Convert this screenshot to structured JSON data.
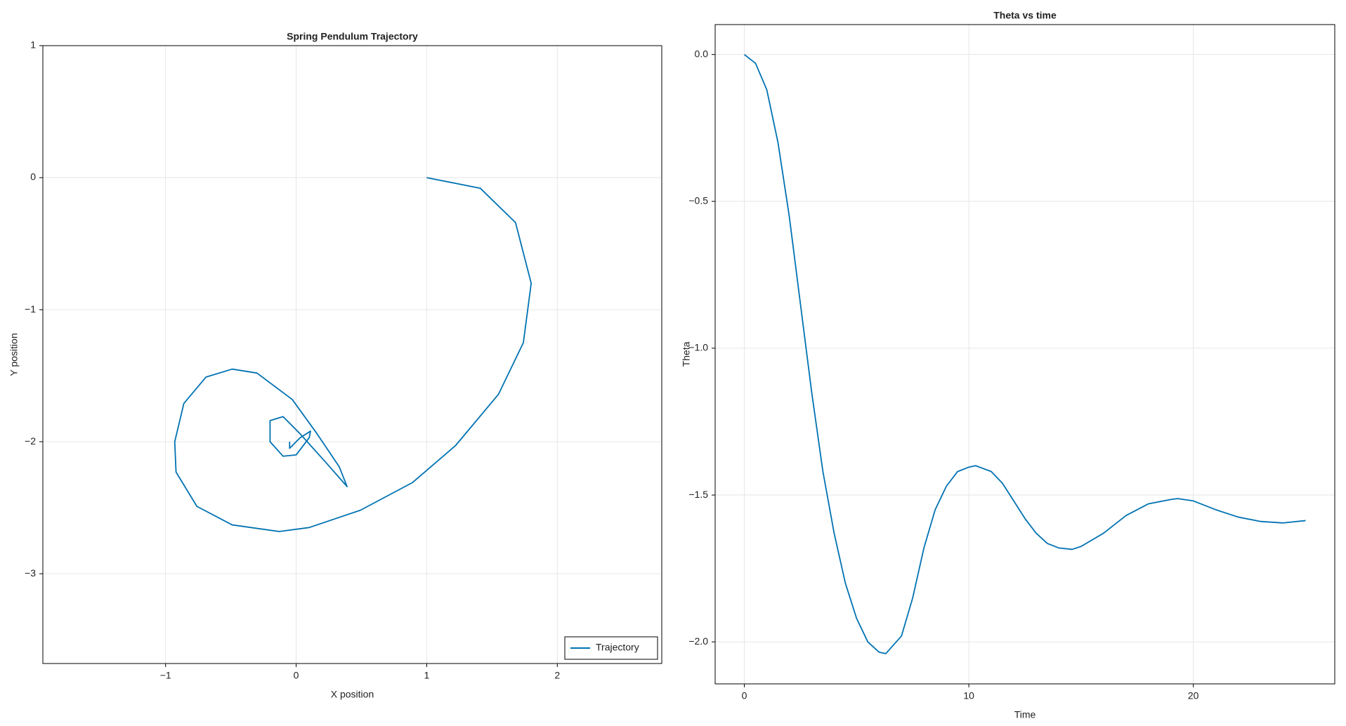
{
  "chart_data": [
    {
      "type": "line",
      "title": "Spring Pendulum Trajectory",
      "x_label": "X position",
      "y_label": "Y position",
      "xlim": [
        -1.94,
        2.8
      ],
      "ylim": [
        -3.68,
        1
      ],
      "xticks": [
        {
          "value": -1,
          "label": "−1"
        },
        0,
        1,
        2
      ],
      "yticks": [
        1,
        0,
        {
          "value": -1,
          "label": "−1"
        },
        {
          "value": -2,
          "label": "−2"
        },
        {
          "value": -3,
          "label": "−3"
        }
      ],
      "grid": true,
      "legend": "lower right",
      "series": [
        {
          "name": "Trajectory",
          "color": "#0072b2",
          "x": [
            1,
            1.41,
            1.68,
            1.8,
            1.74,
            1.55,
            1.22,
            0.89,
            0.49,
            0.1,
            -0.13,
            -0.49,
            -0.76,
            -0.92,
            -0.93,
            -0.86,
            -0.69,
            -0.49,
            -0.3,
            -0.03,
            0.16,
            0.33,
            0.39,
            0.23,
            0.03,
            -0.1,
            -0.2,
            -0.2,
            -0.1,
            0,
            0.1,
            0.11,
            0.03,
            -0.05,
            -0.05
          ],
          "values": [
            0,
            -0.08,
            -0.34,
            -0.8,
            -1.25,
            -1.64,
            -2.03,
            -2.31,
            -2.52,
            -2.65,
            -2.68,
            -2.63,
            -2.49,
            -2.23,
            -2,
            -1.71,
            -1.51,
            -1.45,
            -1.48,
            -1.68,
            -1.94,
            -2.19,
            -2.34,
            -2.16,
            -1.94,
            -1.81,
            -1.84,
            -2,
            -2.11,
            -2.1,
            -1.97,
            -1.92,
            -1.97,
            -2.05,
            -2
          ]
        }
      ]
    },
    {
      "type": "line",
      "title": "Theta vs time",
      "x_label": "Time",
      "y_label": "Theta",
      "xlim": [
        -1.3,
        26.3
      ],
      "ylim": [
        -2.143,
        0.102
      ],
      "xticks": [
        0,
        10,
        20
      ],
      "yticks": [
        {
          "value": 0,
          "label": "0.0"
        },
        {
          "value": -0.5,
          "label": "−0.5"
        },
        {
          "value": -1,
          "label": "−1.0"
        },
        {
          "value": -1.5,
          "label": "−1.5"
        },
        {
          "value": -2,
          "label": "−2.0"
        }
      ],
      "grid": true,
      "series": [
        {
          "color": "#0072b2",
          "x": [
            0,
            0.5,
            1,
            1.5,
            2,
            2.5,
            3,
            3.5,
            4,
            4.5,
            5,
            5.5,
            6,
            6.3,
            7,
            7.5,
            8,
            8.5,
            9,
            9.5,
            10,
            10.3,
            11,
            11.5,
            12,
            12.5,
            13,
            13.5,
            14,
            14.6,
            15,
            16,
            17,
            18,
            19,
            19.3,
            20,
            21,
            22,
            23,
            24,
            25
          ],
          "values": [
            0,
            -0.03,
            -0.12,
            -0.3,
            -0.55,
            -0.85,
            -1.15,
            -1.42,
            -1.63,
            -1.8,
            -1.92,
            -2,
            -2.035,
            -2.04,
            -1.98,
            -1.85,
            -1.68,
            -1.55,
            -1.47,
            -1.42,
            -1.405,
            -1.4,
            -1.42,
            -1.46,
            -1.52,
            -1.58,
            -1.63,
            -1.665,
            -1.68,
            -1.685,
            -1.675,
            -1.63,
            -1.57,
            -1.53,
            -1.515,
            -1.512,
            -1.52,
            -1.55,
            -1.575,
            -1.59,
            -1.595,
            -1.587
          ]
        }
      ]
    }
  ]
}
